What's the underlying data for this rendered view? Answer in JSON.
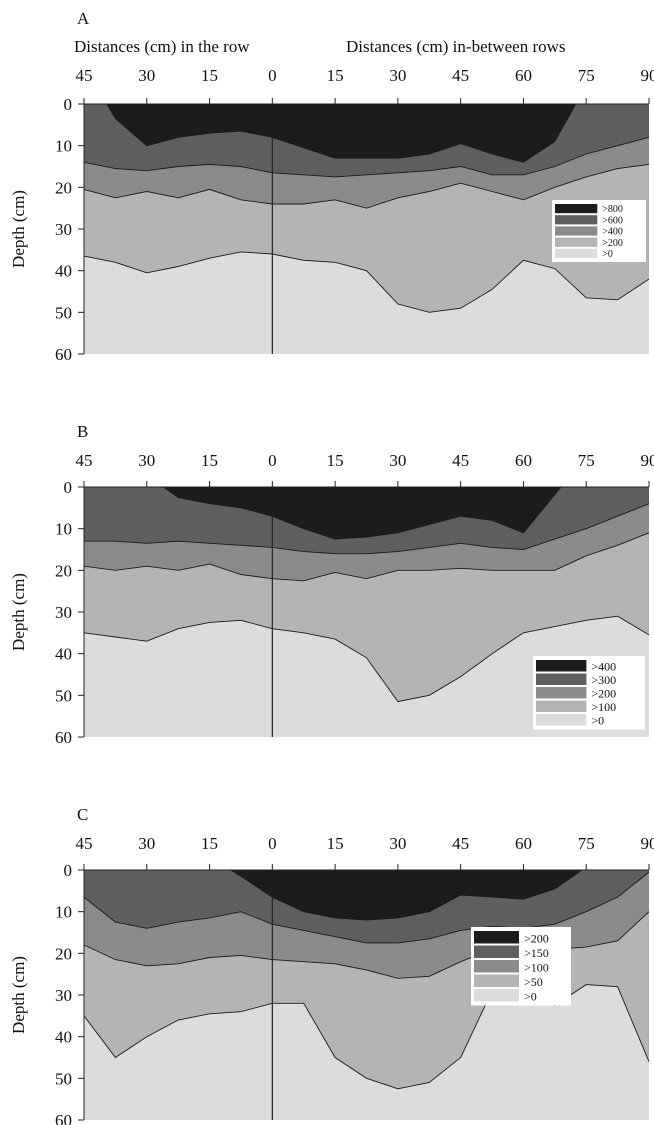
{
  "header": {
    "left_caption": "Distances (cm) in the row",
    "right_caption": "Distances (cm) in-between rows"
  },
  "chart_data": [
    {
      "type": "heatmap",
      "panel_label": "A",
      "ylabel": "Depth (cm)",
      "x_ticks": [
        "45",
        "30",
        "15",
        "0",
        "15",
        "30",
        "45",
        "60",
        "75",
        "90"
      ],
      "y_ticks": [
        0,
        10,
        20,
        30,
        40,
        50,
        60
      ],
      "legend": [
        {
          "label": ">800",
          "color": "#1c1c1c"
        },
        {
          "label": ">600",
          "color": "#5f5f5f"
        },
        {
          "label": ">400",
          "color": "#8b8b8b"
        },
        {
          "label": ">200",
          "color": "#b4b4b4"
        },
        {
          "label": ">0",
          "color": "#dcdcdc"
        }
      ],
      "x": [
        -45,
        -37.5,
        -30,
        -22.5,
        -15,
        -7.5,
        0,
        7.5,
        15,
        22.5,
        30,
        37.5,
        45,
        52.5,
        60,
        67.5,
        75,
        82.5,
        90
      ],
      "boundaries": [
        {
          "level": ">200",
          "depth": [
            36.5,
            38,
            40.5,
            39,
            37,
            35.5,
            36,
            37.5,
            38,
            40,
            48,
            50,
            49,
            44.5,
            37.5,
            39.5,
            46.5,
            47,
            42
          ]
        },
        {
          "level": ">400",
          "depth": [
            20.5,
            22.5,
            21,
            22.5,
            20.5,
            23,
            24,
            24,
            23,
            25,
            22.5,
            21,
            19,
            21,
            23,
            20,
            17.5,
            15.5,
            14.5
          ]
        },
        {
          "level": ">600",
          "depth": [
            14,
            15.5,
            16,
            15,
            14.5,
            15,
            16.5,
            17,
            17.5,
            17,
            16.5,
            16,
            15,
            17,
            17,
            15,
            12,
            10,
            8
          ]
        },
        {
          "level": ">800",
          "start": -39.5,
          "end": 72.5,
          "depth": [
            null,
            3.5,
            10,
            8,
            7,
            6.5,
            8,
            10.5,
            13,
            13,
            13,
            12,
            9.5,
            12,
            14,
            9,
            null,
            null,
            null
          ]
        }
      ]
    },
    {
      "type": "heatmap",
      "panel_label": "B",
      "ylabel": "Depth (cm)",
      "x_ticks": [
        "45",
        "30",
        "15",
        "0",
        "15",
        "30",
        "45",
        "60",
        "75",
        "90"
      ],
      "y_ticks": [
        0,
        10,
        20,
        30,
        40,
        50,
        60
      ],
      "legend": [
        {
          "label": ">400",
          "color": "#1c1c1c"
        },
        {
          "label": ">300",
          "color": "#5f5f5f"
        },
        {
          "label": ">200",
          "color": "#8b8b8b"
        },
        {
          "label": ">100",
          "color": "#b4b4b4"
        },
        {
          "label": ">0",
          "color": "#dcdcdc"
        }
      ],
      "x": [
        -45,
        -37.5,
        -30,
        -22.5,
        -15,
        -7.5,
        0,
        7.5,
        15,
        22.5,
        30,
        37.5,
        45,
        52.5,
        60,
        67.5,
        75,
        82.5,
        90
      ],
      "boundaries": [
        {
          "level": ">100",
          "depth": [
            35,
            36,
            37,
            34,
            32.5,
            32,
            34,
            35,
            36.5,
            41,
            51.5,
            50,
            45.5,
            40,
            35,
            33.5,
            32,
            31,
            35.5
          ]
        },
        {
          "level": ">200",
          "depth": [
            19,
            20,
            19,
            20,
            18.5,
            21,
            22,
            22.5,
            20.5,
            22,
            20,
            20,
            19.5,
            20,
            20,
            20,
            16.5,
            14,
            11
          ]
        },
        {
          "level": ">300",
          "depth": [
            13,
            13,
            13.5,
            13,
            13.5,
            14,
            14.5,
            15.5,
            16,
            16,
            15.5,
            14.5,
            13.5,
            14.5,
            15,
            12.5,
            10,
            7,
            4
          ]
        },
        {
          "level": ">400",
          "start": -26,
          "end": 69,
          "depth": [
            null,
            null,
            null,
            2.5,
            4,
            5,
            7,
            10,
            12.5,
            12,
            11,
            9,
            7,
            8,
            11,
            null,
            null,
            null,
            null
          ]
        }
      ]
    },
    {
      "type": "heatmap",
      "panel_label": "C",
      "ylabel": "Depth (cm)",
      "x_ticks": [
        "45",
        "30",
        "15",
        "0",
        "15",
        "30",
        "45",
        "60",
        "75",
        "90"
      ],
      "y_ticks": [
        0,
        10,
        20,
        30,
        40,
        50,
        60
      ],
      "legend": [
        {
          "label": ">200",
          "color": "#1c1c1c"
        },
        {
          "label": ">150",
          "color": "#5f5f5f"
        },
        {
          "label": ">100",
          "color": "#8b8b8b"
        },
        {
          "label": ">50",
          "color": "#b4b4b4"
        },
        {
          "label": ">0",
          "color": "#dcdcdc"
        }
      ],
      "x": [
        -45,
        -37.5,
        -30,
        -22.5,
        -15,
        -7.5,
        0,
        7.5,
        15,
        22.5,
        30,
        37.5,
        45,
        52.5,
        60,
        67.5,
        75,
        82.5,
        90
      ],
      "boundaries": [
        {
          "level": ">50",
          "depth": [
            35,
            45,
            40,
            36,
            34.5,
            34,
            32,
            32,
            45,
            50,
            52.5,
            51,
            45,
            29,
            30.5,
            32.5,
            27.5,
            28,
            46
          ]
        },
        {
          "level": ">100",
          "depth": [
            18,
            21.5,
            23,
            22.5,
            21,
            20.5,
            21.5,
            22,
            22.5,
            24,
            26,
            25.5,
            22,
            19,
            19,
            19,
            18.5,
            17,
            10
          ]
        },
        {
          "level": ">150",
          "depth": [
            6.5,
            12.5,
            14,
            12.5,
            11.5,
            10,
            13,
            14.5,
            16,
            17.5,
            17.5,
            16.5,
            14.5,
            13.5,
            14,
            13,
            10,
            6.5,
            0.5
          ]
        },
        {
          "level": ">200",
          "start": -10,
          "end": 74,
          "depth": [
            null,
            null,
            null,
            null,
            null,
            1.5,
            6.5,
            10,
            11.5,
            12,
            11.5,
            10,
            6,
            6.5,
            7,
            4.5,
            null,
            null,
            null
          ]
        }
      ]
    }
  ]
}
